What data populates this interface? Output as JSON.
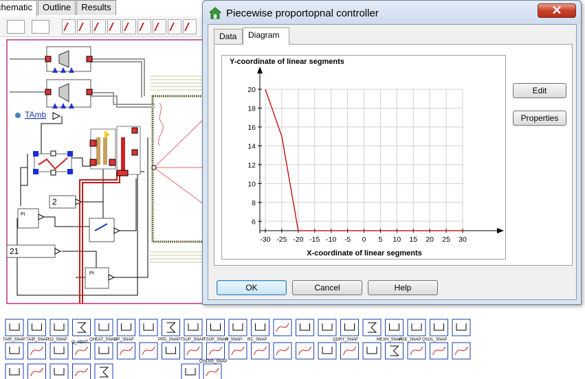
{
  "app": {
    "tabs": [
      "chematic",
      "Outline",
      "Results"
    ]
  },
  "schematic": {
    "tamb_label": "TAmb",
    "input_2": "2",
    "input_21": "21",
    "pi_label": "PI",
    "block_labels": [
      "TAIR_SNAP",
      "TAIR_SNAP",
      "O2_SNAP",
      "Q_VENT",
      "QHEAT_SNAP",
      "OP_SNAP",
      "PPD_SNAP",
      "TSUP_SNAP",
      "TSUP_SNAP",
      "H_SNAP",
      "RC_SNAP",
      "QDRY_SNAP",
      "MEXH_SNAP",
      "AGE_SNAP",
      "QSOL_SNAP",
      "QSENS_SNAP"
    ]
  },
  "dialog": {
    "title": "Piecewise proportopnal controller",
    "close_glyph": "✕",
    "tabs": [
      "Data",
      "Diagram"
    ],
    "active_tab": "Diagram",
    "side_buttons": {
      "edit": "Edit",
      "properties": "Properties"
    },
    "bottom_buttons": {
      "ok": "OK",
      "cancel": "Cancel",
      "help": "Help"
    }
  },
  "chart_data": {
    "type": "line",
    "title": "",
    "ylabel": "Y-coordinate of linear segments",
    "xlabel": "X-coordinate of linear segments",
    "x_ticks": [
      -30,
      -25,
      -20,
      -15,
      -10,
      -5,
      0,
      5,
      10,
      15,
      20,
      25,
      30
    ],
    "y_ticks": [
      6,
      8,
      10,
      12,
      14,
      16,
      18,
      20
    ],
    "xlim": [
      -30,
      30
    ],
    "ylim": [
      5,
      20
    ],
    "grid": true,
    "series": [
      {
        "x": [
          -30,
          -25,
          -20,
          30
        ],
        "y": [
          20,
          15,
          5,
          5
        ],
        "color": "#c81e1e"
      }
    ]
  }
}
